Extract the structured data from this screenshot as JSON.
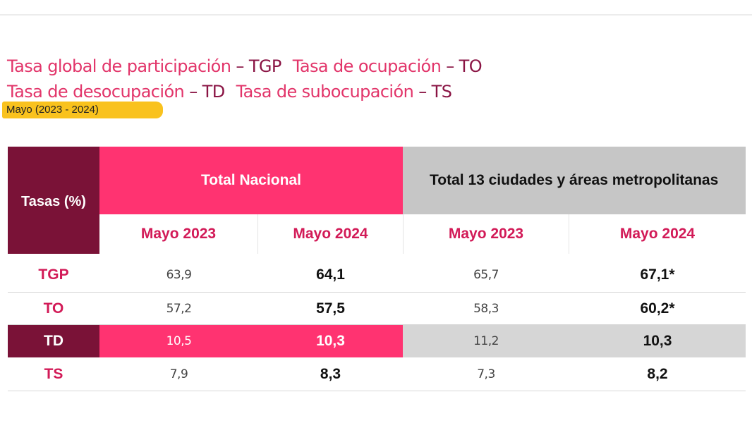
{
  "legend": {
    "line1": [
      {
        "key": "Tasa global de participación",
        "abbr": "TGP"
      },
      {
        "key": "Tasa de ocupación",
        "abbr": "TO"
      }
    ],
    "line2": [
      {
        "key": "Tasa de desocupación",
        "abbr": "TD"
      },
      {
        "key": "Tasa de subocupación",
        "abbr": "TS"
      }
    ],
    "separator": " – "
  },
  "period": "Mayo (2023 - 2024)",
  "table": {
    "row_header": "Tasas (%)",
    "groups": [
      "Total Nacional",
      "Total 13 ciudades y áreas metropolitanas"
    ],
    "subheaders": [
      "Mayo 2023",
      "Mayo 2024",
      "Mayo 2023",
      "Mayo 2024"
    ],
    "rows": [
      {
        "label": "TGP",
        "values": [
          "63,9",
          "64,1",
          "65,7",
          "67,1*"
        ]
      },
      {
        "label": "TO",
        "values": [
          "57,2",
          "57,5",
          "58,3",
          "60,2*"
        ]
      },
      {
        "label": "TD",
        "values": [
          "10,5",
          "10,3",
          "11,2",
          "10,3"
        ]
      },
      {
        "label": "TS",
        "values": [
          "7,9",
          "8,3",
          "7,3",
          "8,2"
        ]
      }
    ]
  },
  "colors": {
    "magenta": "#ff3371",
    "wine": "#7a1237",
    "gray": "#c6c6c6",
    "accent_text": "#d21a57",
    "badge": "#f9c21e"
  }
}
